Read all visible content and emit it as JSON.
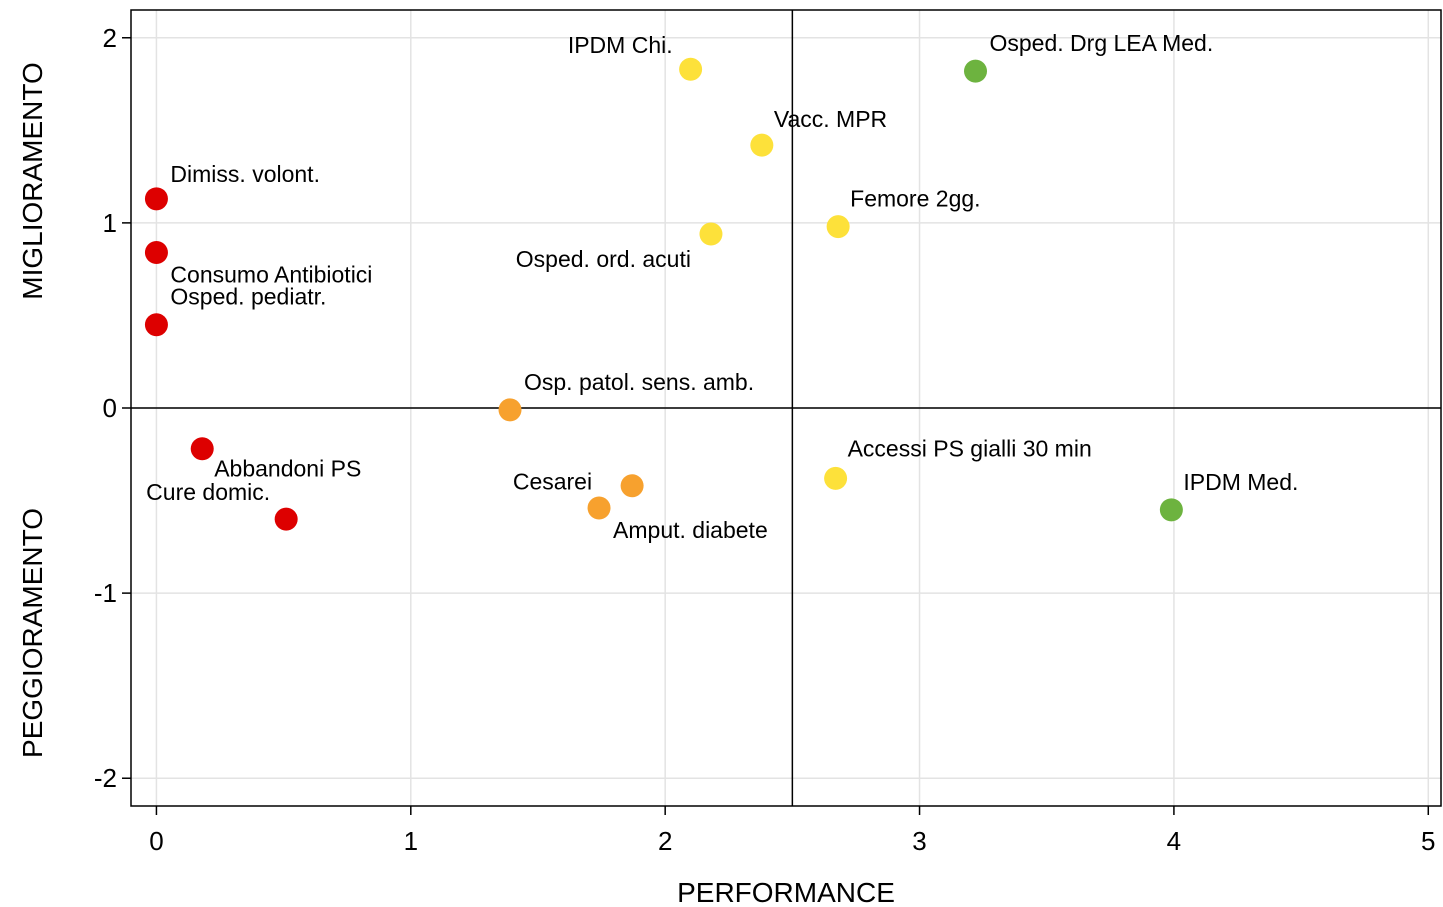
{
  "chart_data": {
    "type": "scatter",
    "xlabel": "PERFORMANCE",
    "ylabel_top": "MIGLIORAMENTO",
    "ylabel_bottom": "PEGGIORAMENTO",
    "xlim": [
      -0.1,
      5.05
    ],
    "ylim": [
      -2.15,
      2.15
    ],
    "xticks": [
      0,
      1,
      2,
      3,
      4,
      5
    ],
    "yticks": [
      -2,
      -1,
      0,
      1,
      2
    ],
    "grid": true,
    "reference_lines": {
      "x": 2.5,
      "y": 0
    },
    "colors": {
      "red": "#dd0000",
      "orange": "#f7a12e",
      "yellow": "#fde13a",
      "green": "#6db33f"
    },
    "points": [
      {
        "label": "IPDM Chi.",
        "x": 2.1,
        "y": 1.83,
        "color": "yellow",
        "anchor": "end",
        "dx": -18,
        "dy": -16
      },
      {
        "label": "Osped. Drg LEA Med.",
        "x": 3.22,
        "y": 1.82,
        "color": "green",
        "anchor": "start",
        "dx": 14,
        "dy": -20
      },
      {
        "label": "Vacc. MPR",
        "x": 2.38,
        "y": 1.42,
        "color": "yellow",
        "anchor": "start",
        "dx": 12,
        "dy": -18
      },
      {
        "label": "Dimiss. volont.",
        "x": 0.0,
        "y": 1.13,
        "color": "red",
        "anchor": "start",
        "dx": 14,
        "dy": -17
      },
      {
        "label": "Femore 2gg.",
        "x": 2.68,
        "y": 0.98,
        "color": "yellow",
        "anchor": "start",
        "dx": 12,
        "dy": -20
      },
      {
        "label": "Osped.  ord. acuti",
        "x": 2.18,
        "y": 0.94,
        "color": "yellow",
        "anchor": "end",
        "dx": -20,
        "dy": 33
      },
      {
        "label": "Consumo Antibiotici",
        "x": 0.0,
        "y": 0.84,
        "color": "red",
        "anchor": "start",
        "dx": 14,
        "dy": 30
      },
      {
        "label": "Osped. pediatr.",
        "x": 0.0,
        "y": 0.45,
        "color": "red",
        "anchor": "start",
        "dx": 14,
        "dy": -20
      },
      {
        "label": "Osp. patol. sens. amb.",
        "x": 1.39,
        "y": -0.01,
        "color": "orange",
        "anchor": "start",
        "dx": 14,
        "dy": -20
      },
      {
        "label": "Abbandoni PS",
        "x": 0.18,
        "y": -0.22,
        "color": "red",
        "anchor": "start",
        "dx": 12,
        "dy": 28
      },
      {
        "label": "Accessi PS gialli 30 min",
        "x": 2.67,
        "y": -0.38,
        "color": "yellow",
        "anchor": "start",
        "dx": 12,
        "dy": -22
      },
      {
        "label": "Cesarei",
        "x": 1.87,
        "y": -0.42,
        "color": "orange",
        "anchor": "end",
        "dx": -40,
        "dy": 4
      },
      {
        "label": "Amput. diabete",
        "x": 1.74,
        "y": -0.54,
        "color": "orange",
        "anchor": "start",
        "dx": 14,
        "dy": 30
      },
      {
        "label": "IPDM Med.",
        "x": 3.99,
        "y": -0.55,
        "color": "green",
        "anchor": "start",
        "dx": 12,
        "dy": -20
      },
      {
        "label": "Cure domic.",
        "x": 0.51,
        "y": -0.6,
        "color": "red",
        "anchor": "end",
        "dx": -16,
        "dy": -19
      }
    ]
  }
}
